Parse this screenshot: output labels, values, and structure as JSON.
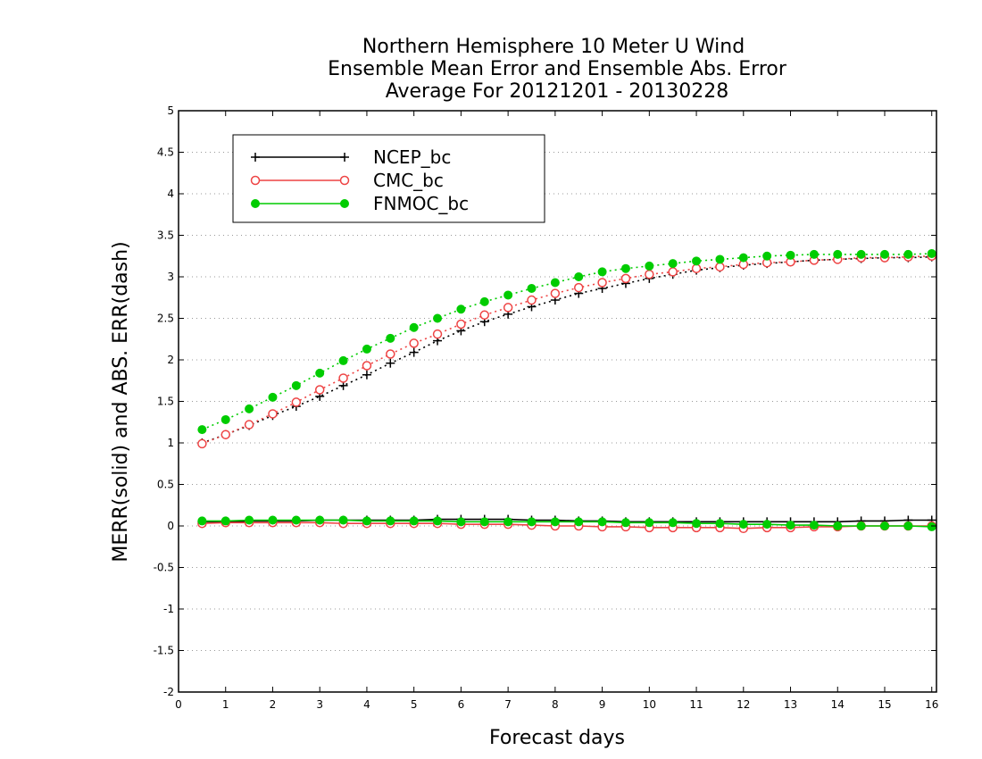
{
  "chart_data": {
    "type": "line",
    "title": [
      "Northern Hemisphere 10 Meter U Wind",
      "Ensemble Mean Error and Ensemble Abs. Error",
      "Average For 20121201 - 20130228"
    ],
    "xlabel": "Forecast days",
    "ylabel": "MERR(solid) and ABS. ERR(dash)",
    "xlim": [
      0,
      16.1
    ],
    "ylim": [
      -2,
      5
    ],
    "xticks": [
      "0",
      "1",
      "2",
      "3",
      "4",
      "5",
      "6",
      "7",
      "8",
      "9",
      "10",
      "11",
      "12",
      "13",
      "14",
      "15",
      "16"
    ],
    "yticks": [
      "-2",
      "-1.5",
      "-1",
      "-0.5",
      "0",
      "0.5",
      "1",
      "1.5",
      "2",
      "2.5",
      "3",
      "3.5",
      "4",
      "4.5",
      "5"
    ],
    "grid": "horizontal dotted",
    "legend_position": "top-left",
    "x": [
      0.5,
      1,
      1.5,
      2,
      2.5,
      3,
      3.5,
      4,
      4.5,
      5,
      5.5,
      6,
      6.5,
      7,
      7.5,
      8,
      8.5,
      9,
      9.5,
      10,
      10.5,
      11,
      11.5,
      12,
      12.5,
      13,
      13.5,
      14,
      14.5,
      15,
      15.5,
      16
    ],
    "series": [
      {
        "name": "NCEP_bc",
        "color": "#000000",
        "marker": "plus",
        "merr": [
          0.05,
          0.05,
          0.06,
          0.06,
          0.06,
          0.07,
          0.07,
          0.07,
          0.07,
          0.07,
          0.08,
          0.08,
          0.08,
          0.08,
          0.07,
          0.07,
          0.06,
          0.06,
          0.05,
          0.05,
          0.05,
          0.05,
          0.05,
          0.05,
          0.05,
          0.05,
          0.05,
          0.05,
          0.06,
          0.06,
          0.07,
          0.07
        ],
        "abs_err": [
          1.0,
          1.1,
          1.21,
          1.33,
          1.44,
          1.56,
          1.69,
          1.82,
          1.96,
          2.09,
          2.23,
          2.35,
          2.46,
          2.55,
          2.64,
          2.72,
          2.8,
          2.86,
          2.92,
          2.98,
          3.03,
          3.08,
          3.11,
          3.14,
          3.16,
          3.18,
          3.2,
          3.21,
          3.22,
          3.23,
          3.23,
          3.24
        ]
      },
      {
        "name": "CMC_bc",
        "color": "#ee4444",
        "marker": "open-circle",
        "merr": [
          0.03,
          0.04,
          0.04,
          0.04,
          0.04,
          0.04,
          0.03,
          0.03,
          0.03,
          0.03,
          0.03,
          0.02,
          0.02,
          0.02,
          0.01,
          0.0,
          0.0,
          -0.01,
          -0.01,
          -0.02,
          -0.02,
          -0.02,
          -0.02,
          -0.03,
          -0.02,
          -0.02,
          -0.01,
          -0.01,
          0.0,
          0.0,
          0.0,
          0.0
        ],
        "abs_err": [
          0.99,
          1.1,
          1.22,
          1.35,
          1.49,
          1.64,
          1.78,
          1.93,
          2.07,
          2.2,
          2.31,
          2.43,
          2.54,
          2.63,
          2.72,
          2.8,
          2.87,
          2.93,
          2.98,
          3.03,
          3.06,
          3.1,
          3.12,
          3.15,
          3.17,
          3.18,
          3.2,
          3.21,
          3.23,
          3.23,
          3.24,
          3.25
        ]
      },
      {
        "name": "FNMOC_bc",
        "color": "#00cc00",
        "marker": "filled-circle",
        "merr": [
          0.06,
          0.06,
          0.07,
          0.07,
          0.07,
          0.07,
          0.07,
          0.06,
          0.06,
          0.06,
          0.06,
          0.05,
          0.05,
          0.05,
          0.05,
          0.05,
          0.05,
          0.05,
          0.04,
          0.04,
          0.04,
          0.03,
          0.03,
          0.02,
          0.02,
          0.01,
          0.01,
          0.0,
          0.0,
          0.0,
          0.0,
          -0.01
        ],
        "abs_err": [
          1.16,
          1.28,
          1.41,
          1.55,
          1.69,
          1.84,
          1.99,
          2.13,
          2.26,
          2.39,
          2.5,
          2.61,
          2.7,
          2.78,
          2.86,
          2.93,
          3.0,
          3.06,
          3.1,
          3.13,
          3.16,
          3.19,
          3.21,
          3.23,
          3.25,
          3.26,
          3.27,
          3.27,
          3.27,
          3.27,
          3.27,
          3.28
        ]
      }
    ]
  }
}
